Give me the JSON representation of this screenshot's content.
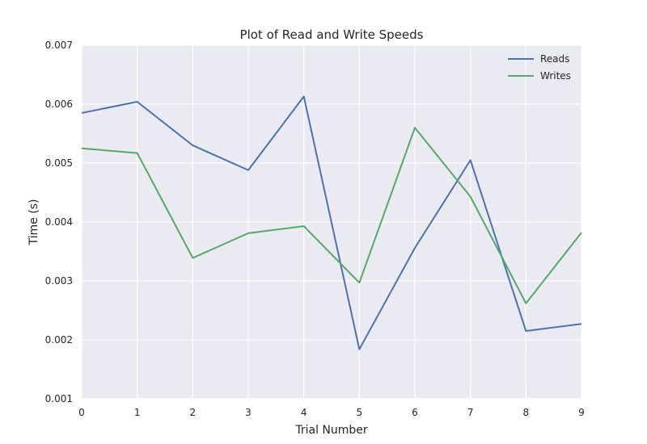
{
  "chart_data": {
    "type": "line",
    "title": "Plot of Read and Write Speeds",
    "xlabel": "Trial Number",
    "ylabel": "Time (s)",
    "x": [
      0,
      1,
      2,
      3,
      4,
      5,
      6,
      7,
      8,
      9
    ],
    "xlim": [
      0,
      9
    ],
    "ylim": [
      0.001,
      0.007
    ],
    "xticks": [
      "0",
      "1",
      "2",
      "3",
      "4",
      "5",
      "6",
      "7",
      "8",
      "9"
    ],
    "yticks": [
      "0.001",
      "0.002",
      "0.003",
      "0.004",
      "0.005",
      "0.006",
      "0.007"
    ],
    "grid": true,
    "legend_position": "top-right",
    "series": [
      {
        "name": "Reads",
        "color": "#4c72b0",
        "values": [
          0.00585,
          0.00604,
          0.0053,
          0.00488,
          0.00613,
          0.00184,
          0.00356,
          0.00505,
          0.00215,
          0.00227
        ]
      },
      {
        "name": "Writes",
        "color": "#55a868",
        "values": [
          0.00525,
          0.00517,
          0.00339,
          0.00381,
          0.00393,
          0.00297,
          0.0056,
          0.00443,
          0.00262,
          0.00382
        ]
      }
    ],
    "background_color": "#eaeaf2",
    "grid_color": "#ffffff"
  }
}
